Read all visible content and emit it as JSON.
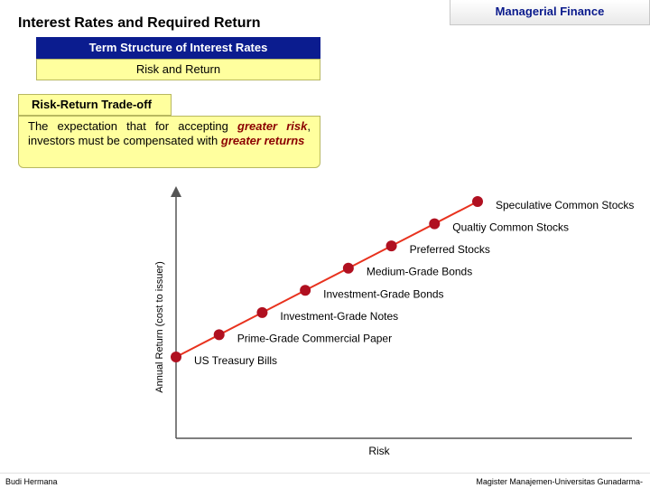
{
  "header": {
    "title": "Interest Rates and Required Return",
    "course_tab": "Managerial Finance"
  },
  "breadcrumb": {
    "section": "Term Structure of Interest Rates",
    "subsection": "Risk and Return"
  },
  "concept": {
    "title": "Risk-Return Trade-off",
    "text_1": "The expectation that for accepting ",
    "text_greater_risk": "greater risk",
    "text_2": ", investors must be compensated with ",
    "text_greater_returns": "greater returns"
  },
  "chart_data": {
    "type": "line",
    "xlabel": "Risk",
    "ylabel": "Annual Return (cost to issuer)",
    "line_color": "#e8321e",
    "point_color": "#b01020",
    "points": [
      {
        "label": "US Treasury Bills",
        "x": 0,
        "y": 0
      },
      {
        "label": "Prime-Grade Commercial Paper",
        "x": 1,
        "y": 1
      },
      {
        "label": "Investment-Grade Notes",
        "x": 2,
        "y": 2
      },
      {
        "label": "Investment-Grade Bonds",
        "x": 3,
        "y": 3
      },
      {
        "label": "Medium-Grade Bonds",
        "x": 4,
        "y": 4
      },
      {
        "label": "Preferred Stocks",
        "x": 5,
        "y": 5
      },
      {
        "label": "Qualtiy Common Stocks",
        "x": 6,
        "y": 6
      },
      {
        "label": "Speculative Common Stocks",
        "x": 7,
        "y": 7
      }
    ],
    "xlim": [
      0,
      7
    ],
    "ylim": [
      0,
      7
    ]
  },
  "footer": {
    "author": "Budi Hermana",
    "institution": "Magister Manajemen-Universitas Gunadarma-"
  },
  "colors": {
    "accent_blue": "#0b1c8f",
    "highlight_yellow": "#ffff9e"
  }
}
